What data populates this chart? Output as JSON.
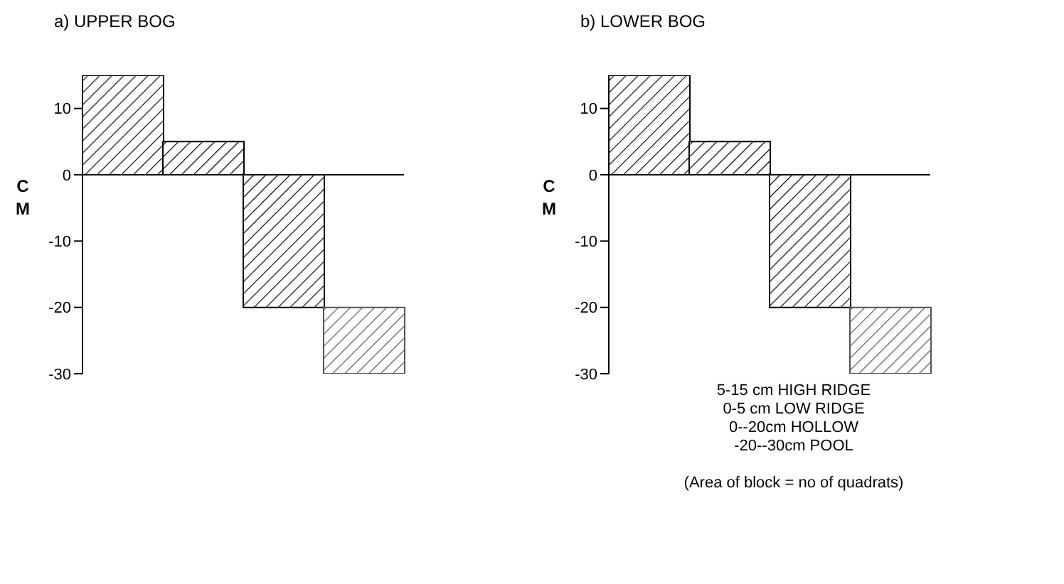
{
  "chart_data": [
    {
      "type": "bar",
      "title": "a) UPPER BOG",
      "ylabel": "CM",
      "categories": [
        null,
        null,
        null,
        null
      ],
      "values": [
        15,
        5,
        -20,
        -10
      ],
      "base": [
        0,
        0,
        0,
        -20
      ],
      "colors": [
        "#000000",
        "#000000",
        "#000000",
        "#555555"
      ],
      "ylim": [
        -30,
        15
      ],
      "yticks": [
        10,
        0,
        -10,
        -20,
        -30
      ],
      "ref_lines": [
        {
          "axis": "y",
          "value": 0
        }
      ],
      "tick_labels": "y",
      "grid": false,
      "legend": false
    },
    {
      "type": "bar",
      "title": "b) LOWER BOG",
      "ylabel": "CM",
      "categories": [
        null,
        null,
        null,
        null
      ],
      "values": [
        15,
        5,
        -20,
        -10
      ],
      "base": [
        0,
        0,
        0,
        -20
      ],
      "colors": [
        "#000000",
        "#000000",
        "#000000",
        "#555555"
      ],
      "ylim": [
        -30,
        15
      ],
      "yticks": [
        10,
        0,
        -10,
        -20,
        -30
      ],
      "ref_lines": [
        {
          "axis": "y",
          "value": 0
        }
      ],
      "tick_labels": "y",
      "grid": false,
      "legend": false,
      "annotations": [
        "5-15 cm HIGH RIDGE",
        "0-5 cm LOW RIDGE",
        "0--20cm HOLLOW",
        "-20--30cm POOL",
        "(Area of block = no of quadrats)"
      ]
    }
  ]
}
